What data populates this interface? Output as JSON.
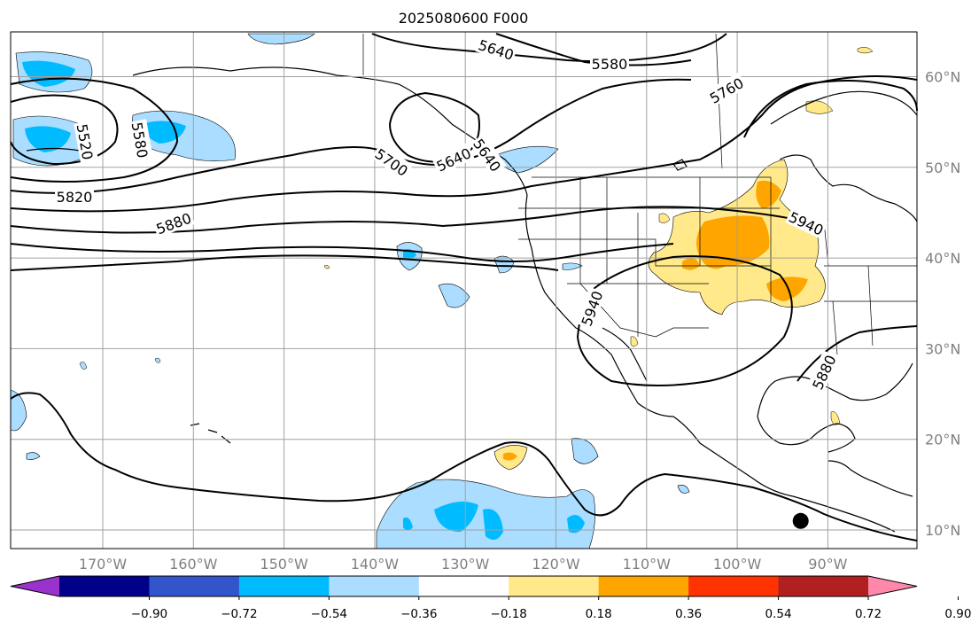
{
  "title": "2025080600 F000",
  "map": {
    "lon_range": [
      -180,
      -80
    ],
    "lat_range": [
      8,
      65
    ],
    "lon_ticks": [
      {
        "value": -170,
        "label": "170°W"
      },
      {
        "value": -160,
        "label": "160°W"
      },
      {
        "value": -150,
        "label": "150°W"
      },
      {
        "value": -140,
        "label": "140°W"
      },
      {
        "value": -130,
        "label": "130°W"
      },
      {
        "value": -120,
        "label": "120°W"
      },
      {
        "value": -110,
        "label": "110°W"
      },
      {
        "value": -100,
        "label": "100°W"
      },
      {
        "value": -90,
        "label": "90°W"
      }
    ],
    "lat_ticks": [
      {
        "value": 10,
        "label": "10°N"
      },
      {
        "value": 20,
        "label": "20°N"
      },
      {
        "value": 30,
        "label": "30°N"
      },
      {
        "value": 40,
        "label": "40°N"
      },
      {
        "value": 50,
        "label": "50°N"
      },
      {
        "value": 60,
        "label": "60°N"
      }
    ],
    "gridlines": true,
    "contour_labels": [
      "5640",
      "5580",
      "5760",
      "5520",
      "5580",
      "5700",
      "5640",
      "5640",
      "5820",
      "5880",
      "5940",
      "5940",
      "5880"
    ],
    "marker": {
      "name": "black dot",
      "lon": -93,
      "lat": 11
    }
  },
  "colorbar": {
    "colors": [
      "#9933cc",
      "#000088",
      "#3355cc",
      "#00bbff",
      "#aaddff",
      "#ffffff",
      "#ffe98a",
      "#ffa500",
      "#ff3300",
      "#b02020",
      "#ff88aa"
    ],
    "tick_labels": [
      "−0.90",
      "−0.72",
      "−0.54",
      "−0.36",
      "−0.18",
      "0.18",
      "0.36",
      "0.54",
      "0.72",
      "0.90"
    ],
    "extend": "both"
  },
  "colors": {
    "negative_light": "#aaddff",
    "negative_mid": "#00bbff",
    "positive_light": "#ffe98a",
    "positive_mid": "#ffa500",
    "contour": "#000000",
    "grid": "#a0a0a0"
  }
}
